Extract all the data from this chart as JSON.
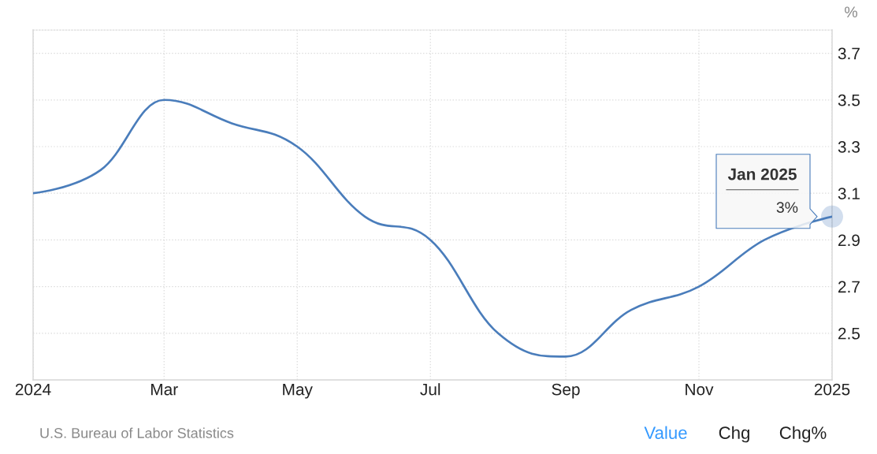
{
  "chart_data": {
    "type": "line",
    "ylabel": "%",
    "x": [
      "2024-01",
      "2024-02",
      "2024-03",
      "2024-04",
      "2024-05",
      "2024-06",
      "2024-07",
      "2024-08",
      "2024-09",
      "2024-10",
      "2024-11",
      "2024-12",
      "2025-01"
    ],
    "series": [
      {
        "color": "#4a7dbb",
        "values": [
          3.1,
          3.2,
          3.5,
          3.4,
          3.3,
          3.0,
          2.9,
          2.5,
          2.4,
          2.6,
          2.7,
          2.9,
          3.0
        ]
      }
    ],
    "xlim": [
      "2024-01",
      "2025-01"
    ],
    "ylim": [
      2.3,
      3.8
    ],
    "xticks": [
      {
        "value": "2024-01",
        "label": "2024"
      },
      {
        "value": "2024-03",
        "label": "Mar"
      },
      {
        "value": "2024-05",
        "label": "May"
      },
      {
        "value": "2024-07",
        "label": "Jul"
      },
      {
        "value": "2024-09",
        "label": "Sep"
      },
      {
        "value": "2024-11",
        "label": "Nov"
      },
      {
        "value": "2025-01",
        "label": "2025"
      }
    ],
    "yticks": [
      2.5,
      2.7,
      2.9,
      3.1,
      3.3,
      3.5,
      3.7
    ],
    "grid": true,
    "annotations": [
      "Jan 2025",
      {
        "text": "3%",
        "x": "2025-01",
        "y": 3
      },
      "U.S. Bureau of Labor Statistics",
      "Value",
      "Chg",
      "Chg%"
    ]
  }
}
